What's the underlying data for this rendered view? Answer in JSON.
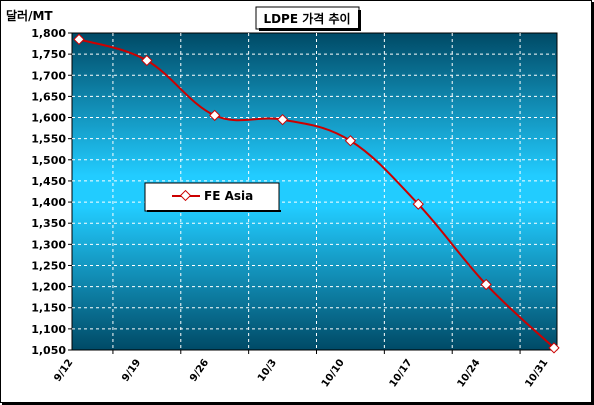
{
  "chart_data": {
    "type": "line",
    "title": "LDPE 가격 추이",
    "ylabel": "달러/MT",
    "xlabel": "",
    "categories": [
      "9/12",
      "9/19",
      "9/26",
      "10/3",
      "10/10",
      "10/17",
      "10/24",
      "10/31"
    ],
    "series": [
      {
        "name": "FE Asia",
        "values": [
          1785,
          1735,
          1605,
          1595,
          1545,
          1395,
          1205,
          1055
        ]
      }
    ],
    "ylim": [
      1050,
      1800
    ],
    "yticks": [
      "1,050",
      "1,100",
      "1,150",
      "1,200",
      "1,250",
      "1,300",
      "1,350",
      "1,400",
      "1,450",
      "1,500",
      "1,550",
      "1,600",
      "1,650",
      "1,700",
      "1,750",
      "1,800"
    ],
    "grid": true,
    "legend": "middle-left",
    "colors": {
      "line": "#cc0000",
      "marker_fill": "#ffffff",
      "plot_gradient_edge": "#004a66",
      "plot_gradient_center": "#22ccff",
      "gridline": "#ffffff"
    }
  }
}
